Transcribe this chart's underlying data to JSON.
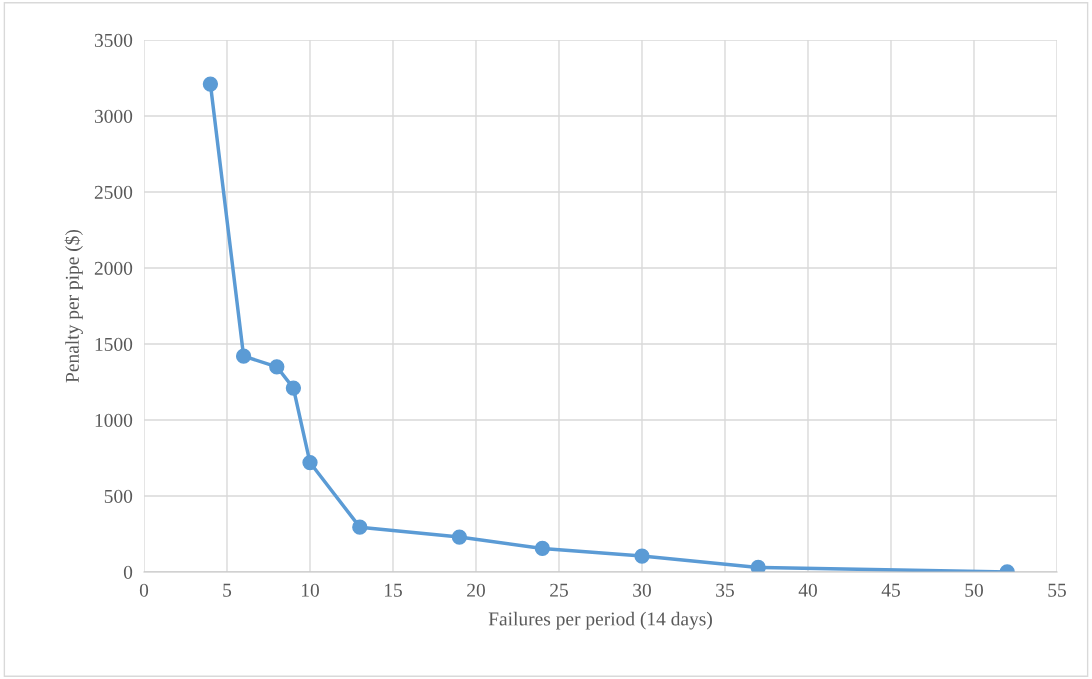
{
  "chart_data": {
    "type": "line",
    "xlabel": "Failures per period (14 days)",
    "ylabel": "Penalty per pipe ($)",
    "x": [
      4,
      6,
      8,
      9,
      10,
      13,
      19,
      24,
      30,
      37,
      52
    ],
    "series": [
      {
        "color": "#5b9bd5",
        "values": [
          3210,
          1420,
          1350,
          1210,
          720,
          295,
          230,
          155,
          105,
          30,
          0
        ]
      }
    ],
    "xlim": [
      0,
      55
    ],
    "xticks": [
      0,
      5,
      10,
      15,
      20,
      25,
      30,
      35,
      40,
      45,
      50,
      55
    ],
    "ylim": [
      0,
      3500
    ],
    "yticks": [
      0,
      500,
      1000,
      1500,
      2000,
      2500,
      3000,
      3500
    ],
    "grid": true,
    "marker": "circle",
    "line_style": "solid"
  }
}
